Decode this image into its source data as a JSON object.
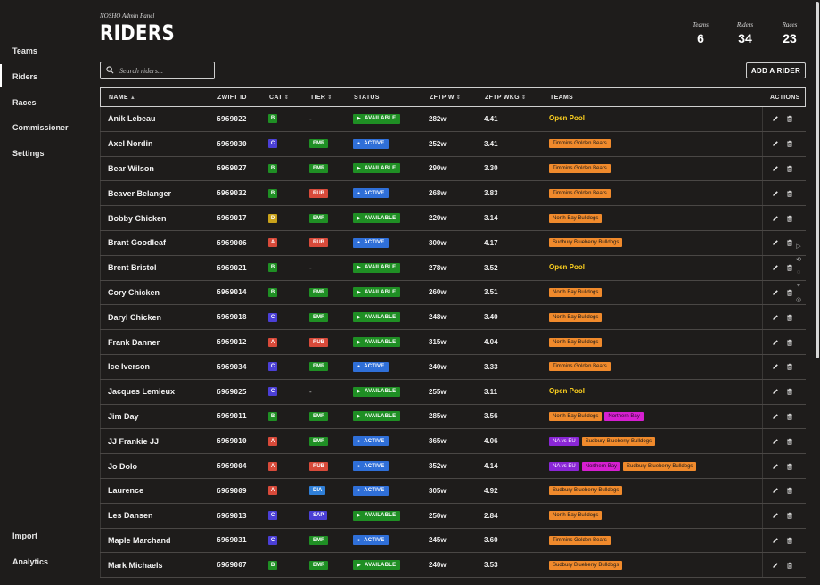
{
  "app": {
    "subtitle": "NOSHO Admin Panel",
    "title": "RIDERS"
  },
  "sidebar": {
    "items": [
      {
        "label": "Teams"
      },
      {
        "label": "Riders",
        "active": true
      },
      {
        "label": "Races"
      },
      {
        "label": "Commissioner"
      },
      {
        "label": "Settings"
      }
    ],
    "bottom_items": [
      {
        "label": "Import"
      },
      {
        "label": "Analytics"
      }
    ]
  },
  "stats": [
    {
      "label": "Teams",
      "value": "6"
    },
    {
      "label": "Riders",
      "value": "34"
    },
    {
      "label": "Races",
      "value": "23"
    }
  ],
  "search": {
    "placeholder": "Search riders...",
    "icon": "search-icon"
  },
  "add_button": {
    "label": "ADD A RIDER"
  },
  "table": {
    "headers": {
      "name": "NAME",
      "zwift_id": "ZWIFT ID",
      "cat": "CAT",
      "tier": "TIER",
      "status": "STATUS",
      "zftp_w": "ZFTP W",
      "zftp_wkg": "ZFTP WKG",
      "teams": "TEAMS",
      "actions": "ACTIONS"
    },
    "rows": [
      {
        "name": "Anik Lebeau",
        "id": "6969022",
        "cat": "B",
        "tier": "-",
        "status": "AVAILABLE",
        "w": "282w",
        "wkg": "4.41",
        "teams": [
          "Open Pool"
        ]
      },
      {
        "name": "Axel Nordin",
        "id": "6969030",
        "cat": "C",
        "tier": "EMR",
        "status": "ACTIVE",
        "w": "252w",
        "wkg": "3.41",
        "teams": [
          "Timmins Golden Bears"
        ]
      },
      {
        "name": "Bear Wilson",
        "id": "6969027",
        "cat": "B",
        "tier": "EMR",
        "status": "AVAILABLE",
        "w": "290w",
        "wkg": "3.30",
        "teams": [
          "Timmins Golden Bears"
        ]
      },
      {
        "name": "Beaver Belanger",
        "id": "6969032",
        "cat": "B",
        "tier": "RUB",
        "status": "ACTIVE",
        "w": "268w",
        "wkg": "3.83",
        "teams": [
          "Timmins Golden Bears"
        ]
      },
      {
        "name": "Bobby Chicken",
        "id": "6969017",
        "cat": "D",
        "tier": "EMR",
        "status": "AVAILABLE",
        "w": "220w",
        "wkg": "3.14",
        "teams": [
          "North Bay Bulldogs"
        ]
      },
      {
        "name": "Brant Goodleaf",
        "id": "6969006",
        "cat": "A",
        "tier": "RUB",
        "status": "ACTIVE",
        "w": "300w",
        "wkg": "4.17",
        "teams": [
          "Sudbury Blueberry Bulldogs"
        ]
      },
      {
        "name": "Brent Bristol",
        "id": "6969021",
        "cat": "B",
        "tier": "-",
        "status": "AVAILABLE",
        "w": "278w",
        "wkg": "3.52",
        "teams": [
          "Open Pool"
        ]
      },
      {
        "name": "Cory Chicken",
        "id": "6969014",
        "cat": "B",
        "tier": "EMR",
        "status": "AVAILABLE",
        "w": "260w",
        "wkg": "3.51",
        "teams": [
          "North Bay Bulldogs"
        ]
      },
      {
        "name": "Daryl Chicken",
        "id": "6969018",
        "cat": "C",
        "tier": "EMR",
        "status": "AVAILABLE",
        "w": "248w",
        "wkg": "3.40",
        "teams": [
          "North Bay Bulldogs"
        ]
      },
      {
        "name": "Frank Danner",
        "id": "6969012",
        "cat": "A",
        "tier": "RUB",
        "status": "AVAILABLE",
        "w": "315w",
        "wkg": "4.04",
        "teams": [
          "North Bay Bulldogs"
        ]
      },
      {
        "name": "Ice Iverson",
        "id": "6969034",
        "cat": "C",
        "tier": "EMR",
        "status": "ACTIVE",
        "w": "240w",
        "wkg": "3.33",
        "teams": [
          "Timmins Golden Bears"
        ]
      },
      {
        "name": "Jacques Lemieux",
        "id": "6969025",
        "cat": "C",
        "tier": "-",
        "status": "AVAILABLE",
        "w": "255w",
        "wkg": "3.11",
        "teams": [
          "Open Pool"
        ]
      },
      {
        "name": "Jim Day",
        "id": "6969011",
        "cat": "B",
        "tier": "EMR",
        "status": "AVAILABLE",
        "w": "285w",
        "wkg": "3.56",
        "teams": [
          "North Bay Bulldogs",
          "Northern Bay"
        ]
      },
      {
        "name": "JJ Frankie JJ",
        "id": "6969010",
        "cat": "A",
        "tier": "EMR",
        "status": "ACTIVE",
        "w": "365w",
        "wkg": "4.06",
        "teams": [
          "NA vs EU",
          "Sudbury Blueberry Bulldogs"
        ]
      },
      {
        "name": "Jo Dolo",
        "id": "6969004",
        "cat": "A",
        "tier": "RUB",
        "status": "ACTIVE",
        "w": "352w",
        "wkg": "4.14",
        "teams": [
          "NA vs EU",
          "Northern Bay",
          "Sudbury Blueberry Bulldogs"
        ]
      },
      {
        "name": "Laurence",
        "id": "6969009",
        "cat": "A",
        "tier": "DIA",
        "status": "ACTIVE",
        "w": "305w",
        "wkg": "4.92",
        "teams": [
          "Sudbury Blueberry Bulldogs"
        ]
      },
      {
        "name": "Les Dansen",
        "id": "6969013",
        "cat": "C",
        "tier": "SAP",
        "status": "AVAILABLE",
        "w": "250w",
        "wkg": "2.84",
        "teams": [
          "North Bay Bulldogs"
        ]
      },
      {
        "name": "Maple Marchand",
        "id": "6969031",
        "cat": "C",
        "tier": "EMR",
        "status": "ACTIVE",
        "w": "245w",
        "wkg": "3.60",
        "teams": [
          "Timmins Golden Bears"
        ]
      },
      {
        "name": "Mark Michaels",
        "id": "6969007",
        "cat": "B",
        "tier": "EMR",
        "status": "AVAILABLE",
        "w": "240w",
        "wkg": "3.53",
        "teams": [
          "Sudbury Blueberry Bulldogs"
        ]
      }
    ]
  },
  "colors": {
    "cat": {
      "A": "#d84a3a",
      "B": "#1f8f24",
      "C": "#4b3fd6",
      "D": "#c9a21a"
    },
    "tier": {
      "EMR": "#1f8f24",
      "RUB": "#d84a3a",
      "DIA": "#2f7fd8",
      "SAP": "#4b3fd6"
    },
    "team": {
      "Northern Bay": "pink",
      "NA vs EU": "purple",
      "Open Pool": "open"
    }
  }
}
